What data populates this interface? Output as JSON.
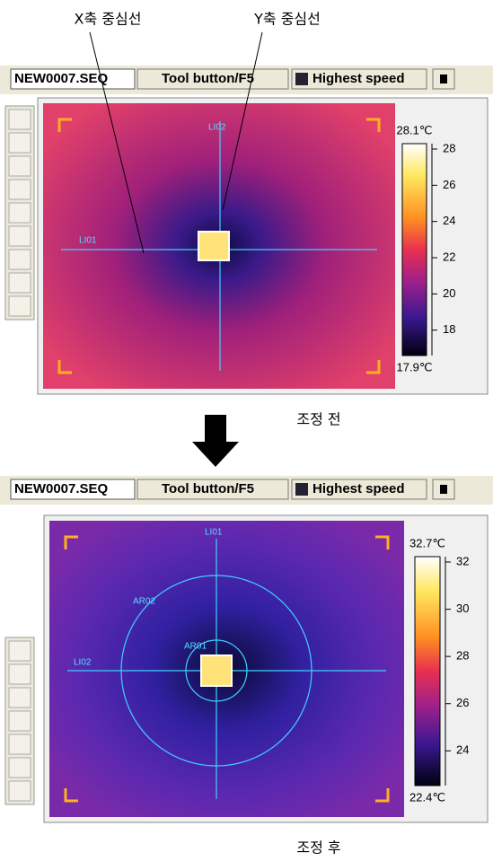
{
  "annotations": {
    "x_line": "X축 중심선",
    "y_line": "Y축 중심선"
  },
  "panels": [
    {
      "toolbar": {
        "file": "NEW0007.SEQ",
        "tool": "Tool button/F5",
        "speed": "Highest speed"
      },
      "labels": [
        "LI02",
        "LI01"
      ],
      "scale": {
        "max": "28.1℃",
        "min": "17.9℃",
        "ticks": [
          28,
          26,
          24,
          22,
          20,
          18
        ]
      },
      "caption": "조정 전"
    },
    {
      "toolbar": {
        "file": "NEW0007.SEQ",
        "tool": "Tool button/F5",
        "speed": "Highest speed"
      },
      "labels": [
        "LI01",
        "LI02",
        "AR02",
        "AR01"
      ],
      "scale": {
        "max": "32.7℃",
        "min": "22.4℃",
        "ticks": [
          32,
          30,
          28,
          26,
          24
        ]
      },
      "caption": "조정 후"
    }
  ]
}
